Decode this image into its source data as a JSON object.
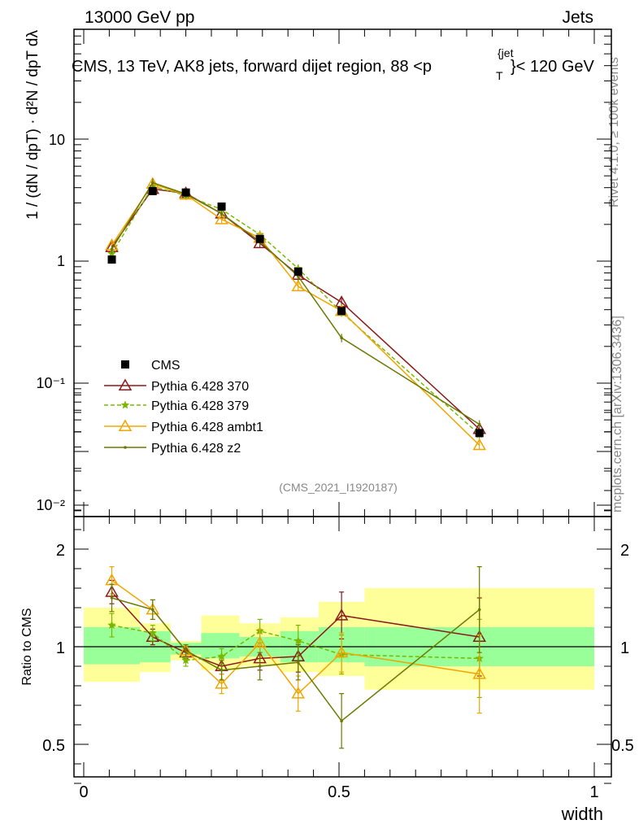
{
  "header": {
    "left": "13000 GeV pp",
    "right": "Jets"
  },
  "side": {
    "rivet": "Rivet 4.1.0, ≥ 100k events",
    "mcplots": "mcplots.cern.ch [arXiv:1306.3436]"
  },
  "chart_data": {
    "type": "scatter",
    "title": "CMS, 13 TeV, AK8 jets, forward dijet region, 88 <p",
    "title_sup": "{jet",
    "title_sub": "T",
    "title_end": "}< 120 GeV",
    "analysis_label": "(CMS_2021_I1920187)",
    "xlabel": "width",
    "ylabel_main": "1 / (dN / dpT) · d²N / dpT dλ",
    "ylabel_ratio": "Ratio to CMS",
    "xlim": [
      -0.02,
      1.02
    ],
    "main_ylim": [
      0.008,
      80
    ],
    "ratio_ylim": [
      0.3,
      2.3
    ],
    "x_ticks": [
      "0",
      "0.5",
      "1"
    ],
    "main_ticks": [
      "10",
      "1",
      "10⁻¹",
      "10⁻²"
    ],
    "ratio_ticks": [
      "2",
      "1",
      "0.5"
    ],
    "x": [
      0.055,
      0.135,
      0.2,
      0.27,
      0.345,
      0.42,
      0.505,
      0.775
    ],
    "bin_edges": [
      0.0,
      0.11,
      0.17,
      0.23,
      0.305,
      0.385,
      0.46,
      0.55,
      1.0
    ],
    "cms": {
      "name": "CMS",
      "values": [
        1.03,
        3.75,
        3.65,
        2.8,
        1.52,
        0.82,
        0.39,
        0.039
      ],
      "band_inner": [
        [
          0.91,
          1.1
        ],
        [
          0.92,
          1.08
        ],
        [
          0.96,
          1.02
        ],
        [
          0.94,
          1.07
        ],
        [
          0.95,
          1.05
        ],
        [
          0.92,
          1.08
        ],
        [
          0.92,
          1.1
        ],
        [
          0.9,
          1.1
        ]
      ],
      "band_outer": [
        [
          0.82,
          1.2
        ],
        [
          0.87,
          1.12
        ],
        [
          0.93,
          1.03
        ],
        [
          0.88,
          1.16
        ],
        [
          0.9,
          1.12
        ],
        [
          0.87,
          1.15
        ],
        [
          0.85,
          1.23
        ],
        [
          0.78,
          1.3
        ]
      ],
      "color": "#000000"
    },
    "series": [
      {
        "name": "Pythia 6.428 370",
        "values": [
          1.3,
          3.9,
          3.6,
          2.45,
          1.4,
          0.77,
          0.46,
          0.042
        ],
        "ratio": [
          1.28,
          1.05,
          0.97,
          0.9,
          0.94,
          0.95,
          1.16,
          1.05
        ],
        "err": [
          0.06,
          0.04,
          0.03,
          0.04,
          0.06,
          0.08,
          0.12,
          0.2
        ],
        "color": "#8b1a1a",
        "marker": "triangle-open",
        "dash": ""
      },
      {
        "name": "Pythia 6.428 379",
        "values": [
          1.15,
          4.1,
          3.45,
          2.65,
          1.65,
          0.87,
          0.38,
          0.038
        ],
        "ratio": [
          1.11,
          1.07,
          0.93,
          0.95,
          1.08,
          1.03,
          0.96,
          0.94
        ],
        "err": [
          0.06,
          0.04,
          0.03,
          0.04,
          0.06,
          0.08,
          0.1,
          0.2
        ],
        "color": "#7ab800",
        "marker": "star",
        "dash": "5,3"
      },
      {
        "name": "Pythia 6.428 ambt1",
        "values": [
          1.35,
          4.3,
          3.5,
          2.2,
          1.55,
          0.62,
          0.39,
          0.031
        ],
        "ratio": [
          1.34,
          1.19,
          0.98,
          0.81,
          1.02,
          0.76,
          0.97,
          0.86
        ],
        "err": [
          0.07,
          0.05,
          0.03,
          0.05,
          0.07,
          0.09,
          0.1,
          0.2
        ],
        "color": "#f0a500",
        "marker": "triangle-open",
        "dash": ""
      },
      {
        "name": "Pythia 6.428 z2",
        "values": [
          1.25,
          4.4,
          3.55,
          2.45,
          1.45,
          0.75,
          0.235,
          0.046
        ],
        "ratio": [
          1.25,
          1.19,
          0.98,
          0.88,
          0.9,
          0.92,
          0.62,
          1.19
        ],
        "err": [
          0.07,
          0.05,
          0.03,
          0.05,
          0.07,
          0.09,
          0.14,
          0.22
        ],
        "color": "#6b7a00",
        "marker": "dot",
        "dash": ""
      }
    ]
  }
}
